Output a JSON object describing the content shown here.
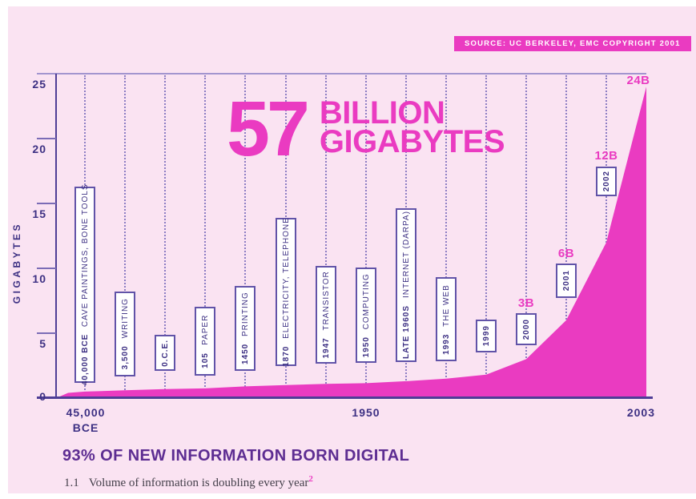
{
  "source_badge": {
    "label": "SOURCE: UC BERKELEY, EMC COPYRIGHT 2001"
  },
  "title": {
    "number": "57",
    "line1": "BILLION",
    "line2": "GIGABYTES"
  },
  "y_axis": {
    "title": "GIGABYTES",
    "ticks": [
      "25",
      "20",
      "15",
      "10",
      "5",
      "0"
    ]
  },
  "x_axis": {
    "left_line1": "45,000",
    "left_line2": "BCE",
    "mid": "1950",
    "right": "2003"
  },
  "headline": {
    "text": "93% OF NEW INFORMATION BORN DIGITAL"
  },
  "footnote": {
    "index": "1.1",
    "text": "Volume of information is doubling every year",
    "superscript": "2"
  },
  "colors": {
    "background": "#fae3f2",
    "magenta": "#ea3bc1",
    "text_dark_purple": "#3d3083",
    "heading_purple": "#5d2d92",
    "axis_line": "#4e3d96",
    "gridline_dotted": "#8d7ec4",
    "box_border": "#6153a8",
    "badge_text_on_magenta": "#ffffff"
  },
  "chart_data": {
    "type": "area",
    "title": "57 BILLION GIGABYTES",
    "ylabel": "GIGABYTES",
    "ylim": [
      0,
      25
    ],
    "y_unit": "billions of gigabytes",
    "grid": "vertical dotted lines at each milestone",
    "x_axis_labels": [
      "45,000 BCE",
      "1950",
      "2003"
    ],
    "milestones": [
      {
        "year": "40,000 BCE",
        "event": "CAVE PAINTINGS, BONE TOOLS",
        "value": 0.5
      },
      {
        "year": "3,500",
        "event": "WRITING",
        "value": 0.6
      },
      {
        "year": "0.C.E.",
        "event": "",
        "value": 0.7
      },
      {
        "year": "105",
        "event": "PAPER",
        "value": 0.75
      },
      {
        "year": "1450",
        "event": "PRINTING",
        "value": 0.9
      },
      {
        "year": "1870",
        "event": "ELECTRICITY, TELEPHONE",
        "value": 1.0
      },
      {
        "year": "1947",
        "event": "TRANSISTOR",
        "value": 1.1
      },
      {
        "year": "1950",
        "event": "COMPUTING",
        "value": 1.15
      },
      {
        "year": "LATE 1960S",
        "event": "INTERNET (DARPA)",
        "value": 1.3
      },
      {
        "year": "1993",
        "event": "THE WEB",
        "value": 1.5
      },
      {
        "year": "1999",
        "event": "",
        "value": 1.8
      },
      {
        "year": "2000",
        "event": "",
        "value": 3,
        "badge": "3B"
      },
      {
        "year": "2001",
        "event": "",
        "value": 6,
        "badge": "6B"
      },
      {
        "year": "2002",
        "event": "",
        "value": 12,
        "badge": "12B"
      },
      {
        "year": "2003",
        "event": "",
        "value": 24,
        "badge": "24B",
        "peak": true
      }
    ]
  }
}
